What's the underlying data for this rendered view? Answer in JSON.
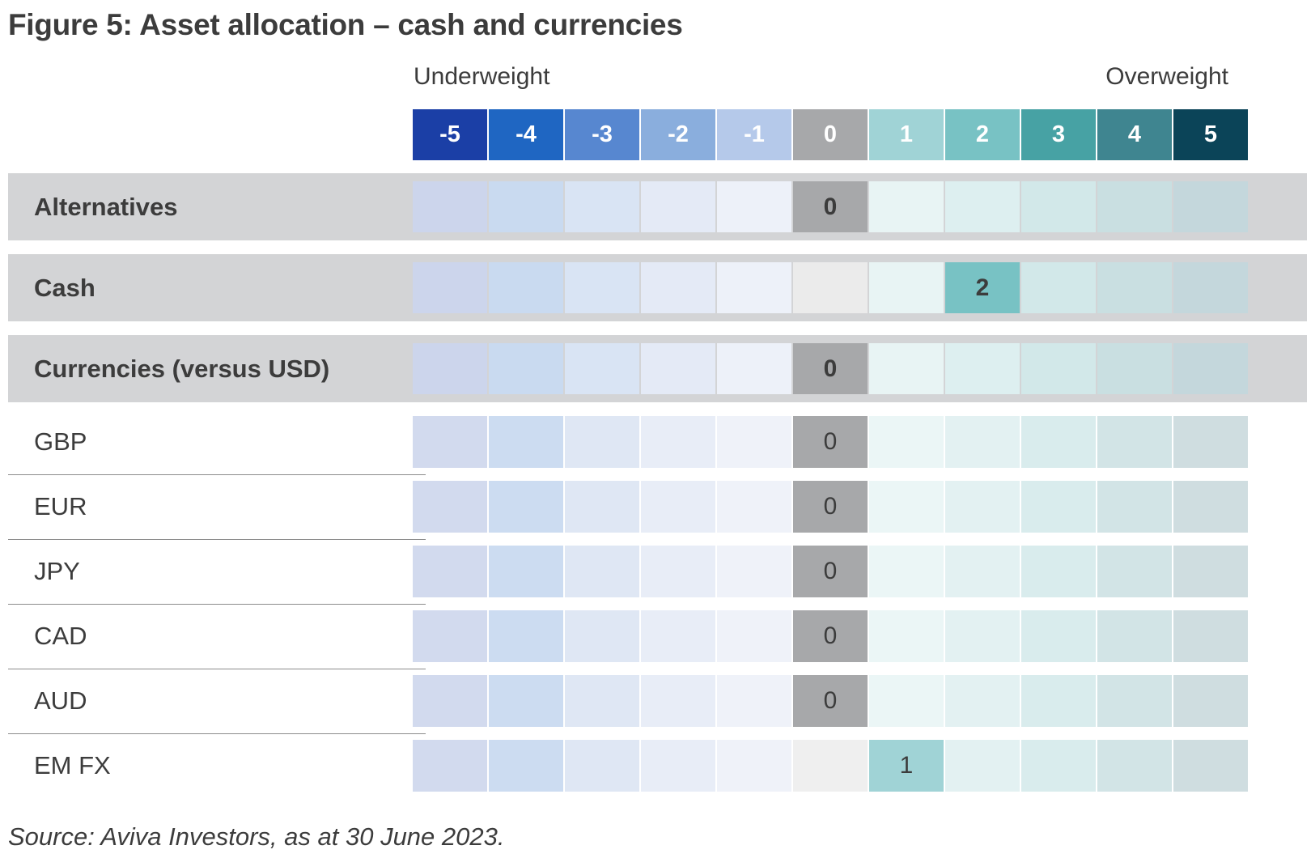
{
  "title": "Figure 5: Asset allocation – cash and currencies",
  "header": {
    "underweight_label": "Underweight",
    "overweight_label": "Overweight"
  },
  "source": "Source: Aviva Investors, as at 30 June 2023.",
  "colors": {
    "scale": [
      "#1b3fa6",
      "#1f66c2",
      "#5787d0",
      "#8aaedd",
      "#b5c9ea",
      "#a7a8aa",
      "#a0d3d6",
      "#78c2c4",
      "#47a2a4",
      "#3f8590",
      "#0b4458"
    ],
    "group_bg": [
      "#ccd5ec",
      "#c9daf0",
      "#d9e4f4",
      "#e4eaf6",
      "#edf1f9",
      "#ebebeb",
      "#e8f4f4",
      "#ddeff0",
      "#d2e8e9",
      "#c9dfe1",
      "#c4d7dc"
    ],
    "item_bg": [
      "#d2daee",
      "#ccdcf1",
      "#dfe7f4",
      "#e8edf7",
      "#eff2f9",
      "#efefef",
      "#ebf6f6",
      "#e3f1f2",
      "#d9eced",
      "#d2e4e6",
      "#cfdde0"
    ],
    "band": "#d3d4d6",
    "text": "#3c3c3c"
  },
  "chart_data": {
    "type": "table",
    "title": "Figure 5: Asset allocation – cash and currencies",
    "scale": [
      "-5",
      "-4",
      "-3",
      "-2",
      "-1",
      "0",
      "1",
      "2",
      "3",
      "4",
      "5"
    ],
    "rows": [
      {
        "label": "Alternatives",
        "value": 0,
        "group": true
      },
      {
        "label": "Cash",
        "value": 2,
        "group": true
      },
      {
        "label": "Currencies (versus USD)",
        "value": 0,
        "group": true
      },
      {
        "label": "GBP",
        "value": 0,
        "group": false
      },
      {
        "label": "EUR",
        "value": 0,
        "group": false
      },
      {
        "label": "JPY",
        "value": 0,
        "group": false
      },
      {
        "label": "CAD",
        "value": 0,
        "group": false
      },
      {
        "label": "AUD",
        "value": 0,
        "group": false
      },
      {
        "label": "EM FX",
        "value": 1,
        "group": false
      }
    ]
  }
}
